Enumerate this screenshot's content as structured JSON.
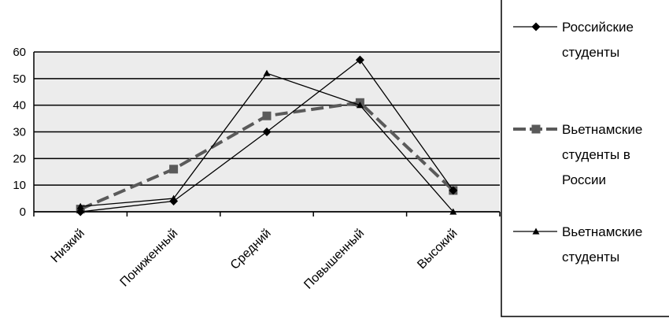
{
  "chart_data": {
    "type": "line",
    "categories": [
      "Низкий",
      "Пониженный",
      "Средний",
      "Повышенный",
      "Высокий"
    ],
    "ylim": [
      0,
      60
    ],
    "yticks": [
      0,
      10,
      20,
      30,
      40,
      50,
      60
    ],
    "grid": true,
    "legend_position": "right",
    "series": [
      {
        "name_lines": [
          "Российские",
          "студенты"
        ],
        "values": [
          0,
          4,
          30,
          57,
          8
        ],
        "color": "#000000",
        "marker": "diamond",
        "dashed": false
      },
      {
        "name_lines": [
          "Вьетнамские",
          "студенты в",
          "России"
        ],
        "values": [
          1,
          16,
          36,
          41,
          8
        ],
        "color": "#5a5a5a",
        "marker": "square",
        "dashed": true
      },
      {
        "name_lines": [
          "Вьетнамские",
          "студенты"
        ],
        "values": [
          2,
          5,
          52,
          40,
          0
        ],
        "color": "#000000",
        "marker": "triangle",
        "dashed": false
      }
    ]
  },
  "colors": {
    "plot_background": "#ececec",
    "grid": "#000000"
  }
}
